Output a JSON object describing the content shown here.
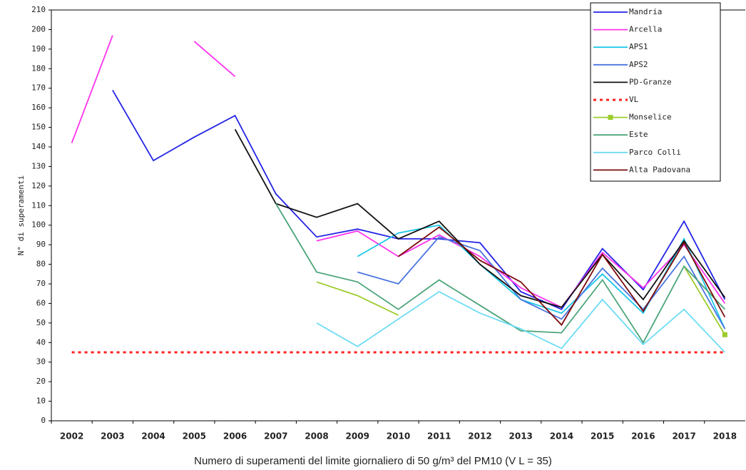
{
  "chart_data": {
    "type": "line",
    "y_label": "N° di superamenti",
    "caption": "Numero di superamenti del limite giornaliero di 50 g/m³ del PM10 (V L = 35)",
    "categories": [
      "2002",
      "2003",
      "2004",
      "2005",
      "2006",
      "2007",
      "2008",
      "2009",
      "2010",
      "2011",
      "2012",
      "2013",
      "2014",
      "2015",
      "2016",
      "2017",
      "2018"
    ],
    "ylim": [
      0,
      210
    ],
    "yticks": [
      0,
      10,
      20,
      30,
      40,
      50,
      60,
      70,
      80,
      90,
      100,
      110,
      120,
      130,
      140,
      150,
      160,
      170,
      180,
      190,
      200,
      210
    ],
    "legend": "top-right",
    "series": [
      {
        "name": "Mandria",
        "color": "#2323e6",
        "values": [
          null,
          169,
          133,
          145,
          156,
          116,
          94,
          98,
          93,
          93,
          91,
          66,
          57,
          88,
          67,
          102,
          62
        ]
      },
      {
        "name": "Arcella",
        "color": "#ff33ee",
        "values": [
          142,
          197,
          null,
          194,
          176,
          null,
          92,
          97,
          84,
          95,
          84,
          68,
          58,
          86,
          68,
          90,
          60
        ]
      },
      {
        "name": "APS1",
        "color": "#1cc8e8",
        "values": [
          null,
          null,
          null,
          null,
          null,
          null,
          null,
          84,
          96,
          100,
          80,
          62,
          55,
          75,
          55,
          93,
          47
        ]
      },
      {
        "name": "APS2",
        "color": "#4a74e0",
        "values": [
          null,
          null,
          null,
          null,
          null,
          null,
          null,
          76,
          70,
          94,
          87,
          62,
          52,
          78,
          57,
          84,
          47
        ]
      },
      {
        "name": "PD-Granze",
        "color": "#111111",
        "values": [
          null,
          null,
          null,
          null,
          149,
          111,
          104,
          111,
          93,
          102,
          80,
          64,
          58,
          85,
          62,
          92,
          63
        ]
      },
      {
        "name": "VL",
        "color": "#ff2020",
        "style": "dotted",
        "values": [
          35,
          35,
          35,
          35,
          35,
          35,
          35,
          35,
          35,
          35,
          35,
          35,
          35,
          35,
          35,
          35,
          35
        ]
      },
      {
        "name": "Monselice",
        "color": "#9ccc2c",
        "marker": "square",
        "values": [
          null,
          null,
          null,
          null,
          null,
          null,
          71,
          64,
          54,
          null,
          null,
          null,
          null,
          null,
          null,
          79,
          44
        ]
      },
      {
        "name": "Este",
        "color": "#4ca57a",
        "values": [
          null,
          null,
          null,
          null,
          null,
          111,
          76,
          71,
          57,
          72,
          59,
          46,
          45,
          72,
          40,
          79,
          57
        ]
      },
      {
        "name": "Parco Colli",
        "color": "#6ddcf4",
        "values": [
          null,
          null,
          null,
          null,
          null,
          null,
          50,
          38,
          52,
          66,
          55,
          47,
          37,
          62,
          39,
          57,
          35
        ]
      },
      {
        "name": "Alta Padovana",
        "color": "#7a0a0a",
        "values": [
          null,
          null,
          null,
          null,
          null,
          null,
          null,
          null,
          84,
          99,
          82,
          71,
          49,
          85,
          56,
          91,
          53
        ]
      }
    ]
  }
}
